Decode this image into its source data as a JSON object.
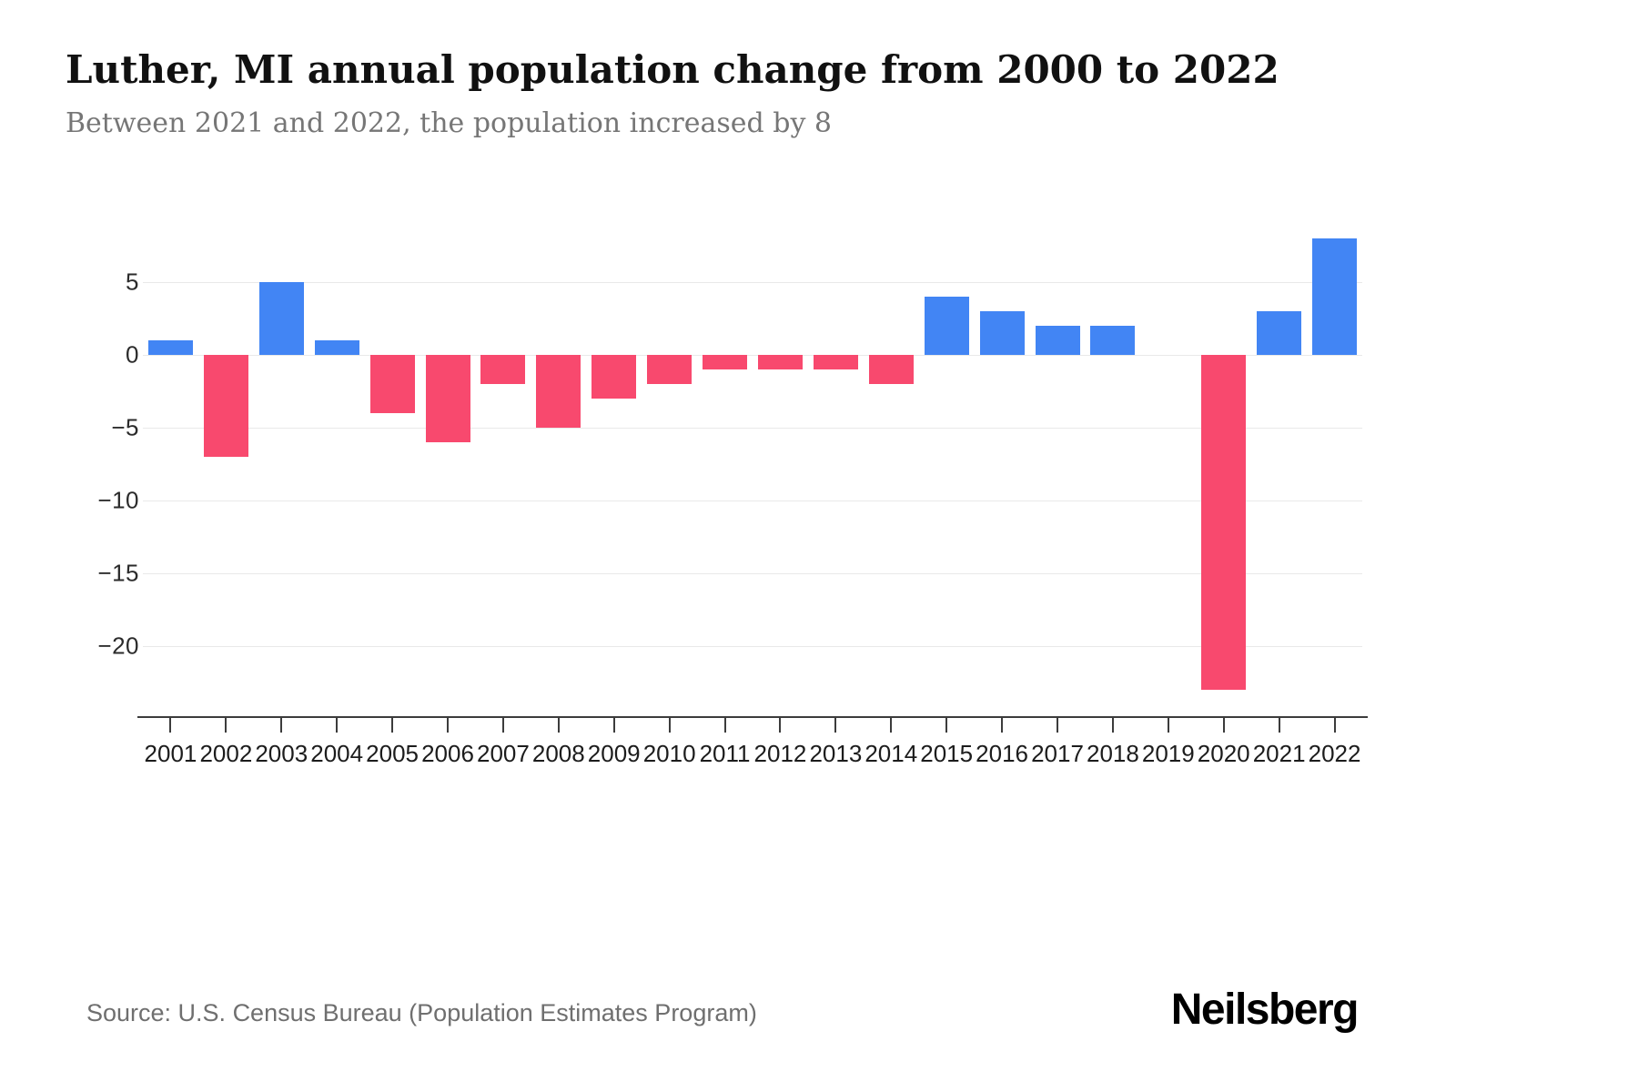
{
  "header": {
    "title": "Luther, MI annual population change from 2000 to 2022",
    "subtitle": "Between 2021 and 2022, the population increased by 8"
  },
  "chart_data": {
    "type": "bar",
    "title": "Luther, MI annual population change from 2000 to 2022",
    "categories": [
      "2001",
      "2002",
      "2003",
      "2004",
      "2005",
      "2006",
      "2007",
      "2008",
      "2009",
      "2010",
      "2011",
      "2012",
      "2013",
      "2014",
      "2015",
      "2016",
      "2017",
      "2018",
      "2019",
      "2020",
      "2021",
      "2022"
    ],
    "values": [
      1,
      -7,
      5,
      1,
      -4,
      -6,
      -2,
      -5,
      -3,
      -2,
      -1,
      -1,
      -1,
      -2,
      4,
      3,
      2,
      2,
      0,
      -23,
      3,
      8
    ],
    "xlabel": "",
    "ylabel": "",
    "ylim": [
      -25,
      9
    ],
    "yticks": [
      5,
      0,
      -5,
      -10,
      -15,
      -20
    ],
    "grid": true,
    "legend": false,
    "positive_color": "#4285f4",
    "negative_color": "#f8496e"
  },
  "footer": {
    "source": "Source: U.S. Census Bureau (Population Estimates Program)",
    "brand": "Neilsberg"
  }
}
